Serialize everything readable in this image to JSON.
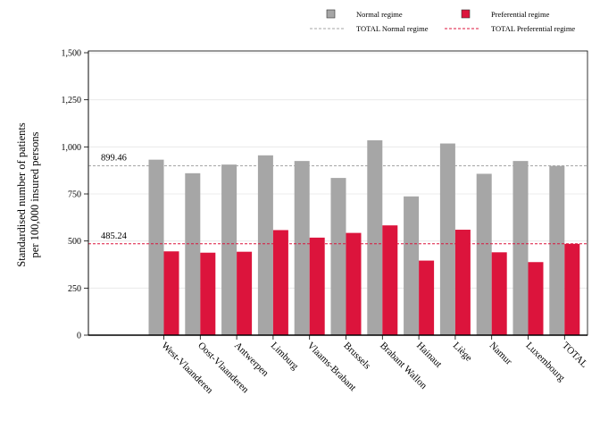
{
  "chart_data": {
    "type": "bar",
    "ylabel": "Standardised number of patients\nper 100,000 insured persons",
    "categories": [
      "West-Vlaanderen",
      "Oost-Vlaanderen",
      "Antwerpen",
      "Limburg",
      "Vlaams-Brabant",
      "Brussels",
      "Brabant Wallon",
      "Hainaut",
      "Liège",
      "Namur",
      "Luxembourg",
      "TOTAL"
    ],
    "series": [
      {
        "name": "Normal regime",
        "color": "#a6a6a6",
        "values": [
          932,
          860,
          906,
          955,
          925,
          835,
          1035,
          737,
          1018,
          857,
          925,
          899
        ]
      },
      {
        "name": "Preferential regime",
        "color": "#dc143c",
        "values": [
          445,
          438,
          443,
          558,
          518,
          543,
          583,
          396,
          560,
          440,
          388,
          485
        ]
      }
    ],
    "reference_lines": [
      {
        "name": "TOTAL Normal regime",
        "value": 899.46,
        "label": "899.46",
        "color": "#a6a6a6"
      },
      {
        "name": "TOTAL Preferential regime",
        "value": 485.24,
        "label": "485.24",
        "color": "#dc143c"
      }
    ],
    "yticks": [
      "0",
      "250",
      "500",
      "750",
      "1,000",
      "1,250",
      "1,500"
    ],
    "ylim": [
      0,
      1500
    ],
    "grid": true,
    "legend": "top"
  }
}
